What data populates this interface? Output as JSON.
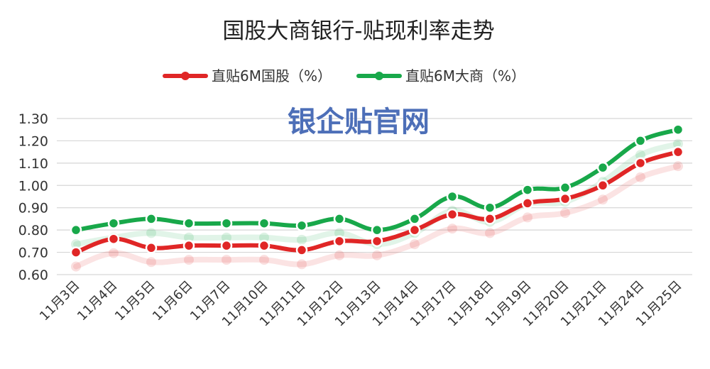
{
  "chart_data": {
    "type": "line",
    "title": "国股大商银行-贴现利率走势",
    "watermark": "银企贴官网",
    "categories": [
      "11月3日",
      "11月4日",
      "11月5日",
      "11月6日",
      "11月7日",
      "11月10日",
      "11月11日",
      "11月12日",
      "11月13日",
      "11月14日",
      "11月17日",
      "11月18日",
      "11月19日",
      "11月20日",
      "11月21日",
      "11月24日",
      "11月25日"
    ],
    "series": [
      {
        "name": "直贴6M国股（%）",
        "color": "#e02626",
        "values": [
          0.7,
          0.76,
          0.72,
          0.73,
          0.73,
          0.73,
          0.71,
          0.75,
          0.75,
          0.8,
          0.87,
          0.85,
          0.92,
          0.94,
          1.0,
          1.1,
          1.15
        ]
      },
      {
        "name": "直贴6M大商（%）",
        "color": "#18a84a",
        "values": [
          0.8,
          0.83,
          0.85,
          0.83,
          0.83,
          0.83,
          0.82,
          0.85,
          0.8,
          0.85,
          0.95,
          0.9,
          0.98,
          0.99,
          1.08,
          1.2,
          1.25
        ]
      }
    ],
    "ylim": [
      0.6,
      1.3
    ],
    "yticks": [
      "0.60",
      "0.70",
      "0.80",
      "0.90",
      "1.00",
      "1.10",
      "1.20",
      "1.30"
    ],
    "grid": true,
    "legend_position": "top-center"
  }
}
